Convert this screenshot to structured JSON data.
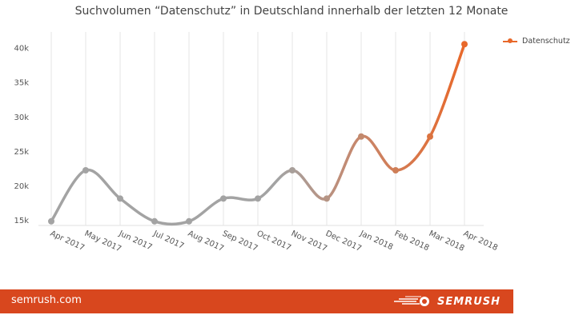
{
  "chart_data": {
    "type": "line",
    "title": "Suchvolumen “Datenschutz” in Deutschland innerhalb der letzten 12 Monate",
    "categories": [
      "Apr 2017",
      "May 2017",
      "Jun 2017",
      "Jul 2017",
      "Aug 2017",
      "Sep 2017",
      "Oct 2017",
      "Nov 2017",
      "Dec 2017",
      "Jan 2018",
      "Feb 2018",
      "Mar 2018",
      "Apr 2018"
    ],
    "series": [
      {
        "name": "Datenschutz",
        "values": [
          14800,
          22200,
          18100,
          14800,
          14800,
          18100,
          18100,
          22200,
          18100,
          27100,
          22200,
          27100,
          40500
        ]
      }
    ],
    "y_ticks": [
      "15k",
      "20k",
      "25k",
      "30k",
      "35k",
      "40k"
    ],
    "ylim": [
      13500,
      42500
    ],
    "grid": "vertical",
    "legend_placement": "top-right",
    "colors": {
      "line_start": "#a3a3a3",
      "line_end": "#e8682a",
      "grid": "#e6e6e6"
    }
  },
  "footer": {
    "site": "semrush.com",
    "logo_text": "SEMRUSH",
    "color": "#d8471e"
  }
}
